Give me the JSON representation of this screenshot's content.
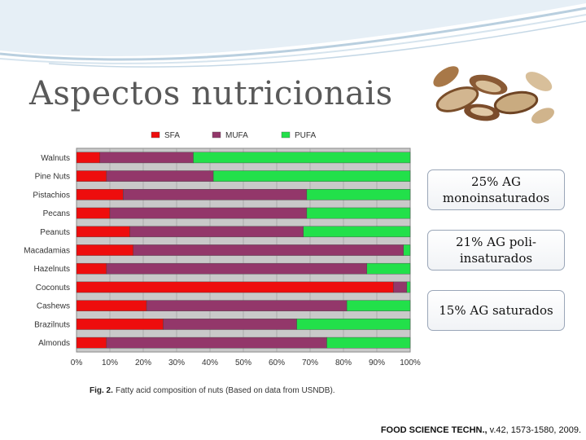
{
  "slide": {
    "title": "Aspectos nutricionais",
    "citation_journal": "FOOD SCIENCE TECHN.,",
    "citation_rest": " v.42, 1573-1580, 2009."
  },
  "info_boxes": [
    {
      "text": "25% AG monoinsaturados"
    },
    {
      "text": "21% AG poli-insaturados"
    },
    {
      "text": "15%  AG saturados"
    }
  ],
  "colors": {
    "SFA": "#ee0d0d",
    "MUFA": "#93376a",
    "PUFA": "#22e04a",
    "plot_bg": "#c9c9c9",
    "swoosh": "#c9dbe8"
  },
  "chart_data": {
    "type": "bar",
    "orientation": "horizontal",
    "stacked": true,
    "caption_label": "Fig. 2.",
    "caption_text": "Fatty acid composition of nuts (Based on data from USNDB).",
    "categories": [
      "Walnuts",
      "Pine Nuts",
      "Pistachios",
      "Pecans",
      "Peanuts",
      "Macadamias",
      "Hazelnuts",
      "Coconuts",
      "Cashews",
      "Brazilnuts",
      "Almonds"
    ],
    "series": [
      {
        "name": "SFA",
        "values": [
          7,
          9,
          14,
          10,
          16,
          17,
          9,
          95,
          21,
          26,
          9
        ]
      },
      {
        "name": "MUFA",
        "values": [
          28,
          32,
          55,
          59,
          52,
          81,
          78,
          4,
          60,
          40,
          66
        ]
      },
      {
        "name": "PUFA",
        "values": [
          65,
          59,
          31,
          31,
          32,
          2,
          13,
          1,
          19,
          34,
          25
        ]
      }
    ],
    "xticks": [
      "0%",
      "10%",
      "20%",
      "30%",
      "40%",
      "50%",
      "60%",
      "70%",
      "80%",
      "90%",
      "100%"
    ],
    "xlim": [
      0,
      100
    ],
    "legend_position": "top",
    "grid": true
  }
}
